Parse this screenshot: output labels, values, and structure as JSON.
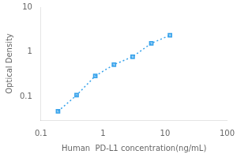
{
  "chart_data": {
    "type": "line",
    "xlabel": "Human  PD-L1 concentration(ng/mL)",
    "ylabel": "Optical Density",
    "x": [
      0.188,
      0.375,
      0.75,
      1.5,
      3.0,
      6.0,
      12.0
    ],
    "values": [
      0.047,
      0.108,
      0.29,
      0.52,
      0.78,
      1.55,
      2.35
    ],
    "xlim": [
      0.1,
      100
    ],
    "ylim": [
      0.03,
      10
    ],
    "xticks": [
      0.1,
      1,
      10,
      100
    ],
    "yticks": [
      0.1,
      1,
      10
    ],
    "log": true,
    "grid": false,
    "marker": "square",
    "line_style": "dotted"
  }
}
